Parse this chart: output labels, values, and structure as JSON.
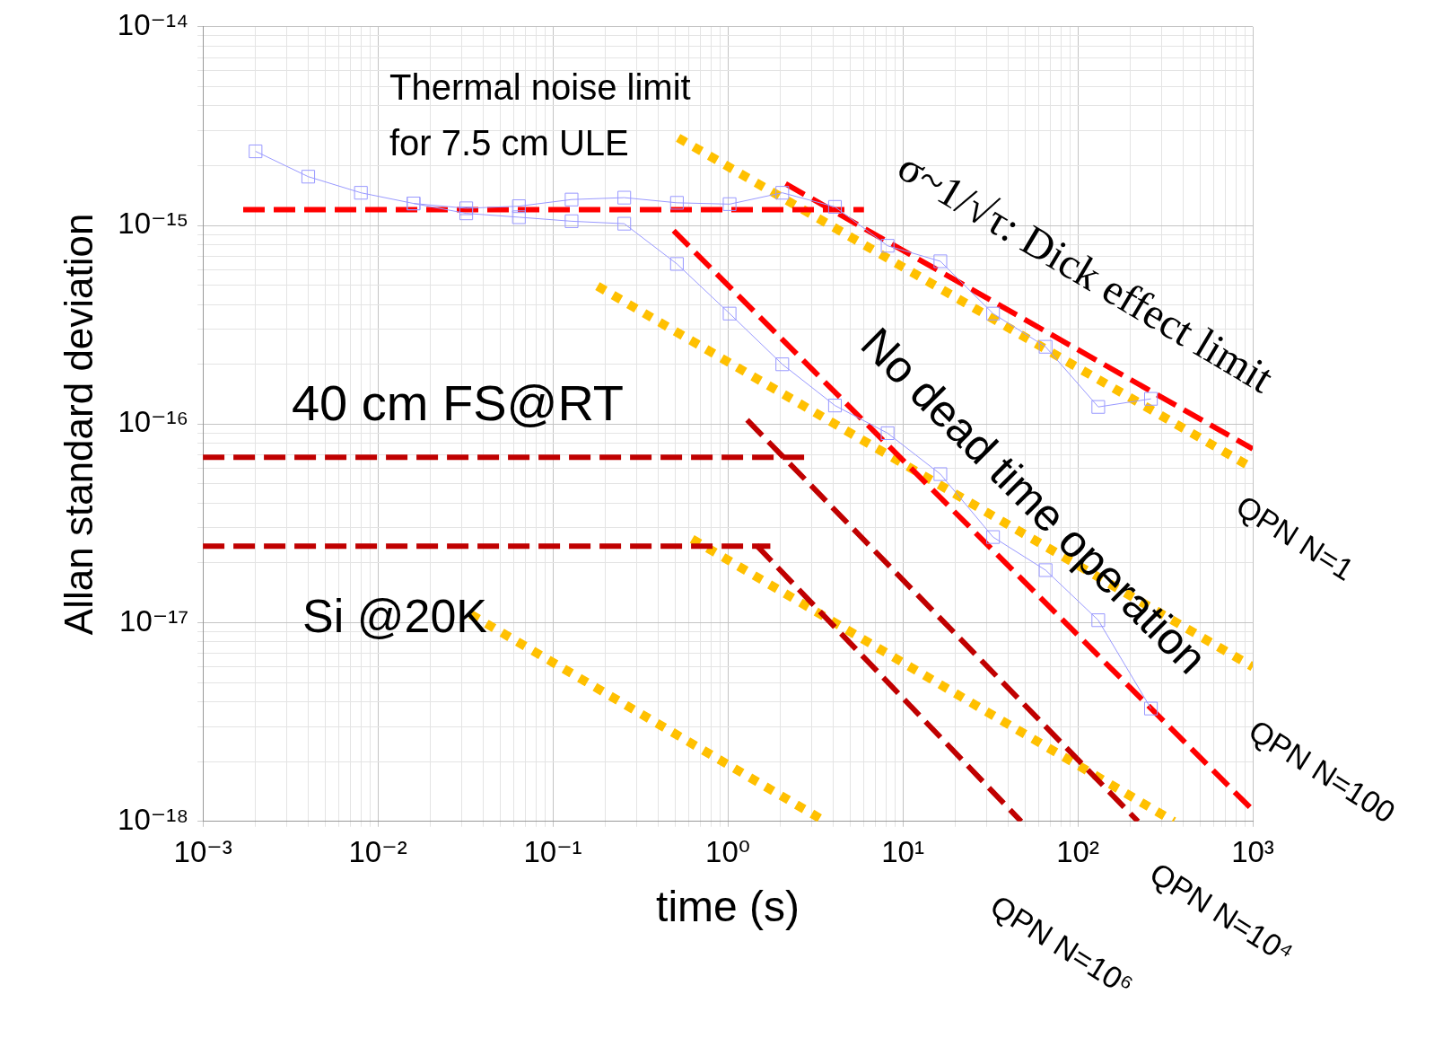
{
  "chart_data": {
    "type": "line",
    "xlabel": "time (s)",
    "ylabel": "Allan standard deviation",
    "log": "xy",
    "grid": true,
    "legend": false,
    "xlim": [
      0.001,
      1000
    ],
    "ylim": [
      1e-18,
      1e-14
    ],
    "xticks": [
      {
        "value": 0.001,
        "label": "10⁻³"
      },
      {
        "value": 0.002,
        "label": null
      },
      {
        "value": 0.003,
        "label": null
      },
      {
        "value": 0.004,
        "label": null
      },
      {
        "value": 0.005,
        "label": null
      },
      {
        "value": 0.006,
        "label": null
      },
      {
        "value": 0.007,
        "label": null
      },
      {
        "value": 0.008,
        "label": null
      },
      {
        "value": 0.009,
        "label": null
      },
      {
        "value": 0.01,
        "label": "10⁻²"
      },
      {
        "value": 0.02,
        "label": null
      },
      {
        "value": 0.03,
        "label": null
      },
      {
        "value": 0.04,
        "label": null
      },
      {
        "value": 0.05,
        "label": null
      },
      {
        "value": 0.06,
        "label": null
      },
      {
        "value": 0.07,
        "label": null
      },
      {
        "value": 0.08,
        "label": null
      },
      {
        "value": 0.09,
        "label": null
      },
      {
        "value": 0.1,
        "label": "10⁻¹"
      },
      {
        "value": 0.2,
        "label": null
      },
      {
        "value": 0.3,
        "label": null
      },
      {
        "value": 0.4,
        "label": null
      },
      {
        "value": 0.5,
        "label": null
      },
      {
        "value": 0.6,
        "label": null
      },
      {
        "value": 0.7,
        "label": null
      },
      {
        "value": 0.8,
        "label": null
      },
      {
        "value": 0.9,
        "label": null
      },
      {
        "value": 1,
        "label": "10⁰"
      },
      {
        "value": 2,
        "label": null
      },
      {
        "value": 3,
        "label": null
      },
      {
        "value": 4,
        "label": null
      },
      {
        "value": 5,
        "label": null
      },
      {
        "value": 6,
        "label": null
      },
      {
        "value": 7,
        "label": null
      },
      {
        "value": 8,
        "label": null
      },
      {
        "value": 9,
        "label": null
      },
      {
        "value": 10,
        "label": "10¹"
      },
      {
        "value": 20,
        "label": null
      },
      {
        "value": 30,
        "label": null
      },
      {
        "value": 40,
        "label": null
      },
      {
        "value": 50,
        "label": null
      },
      {
        "value": 60,
        "label": null
      },
      {
        "value": 70,
        "label": null
      },
      {
        "value": 80,
        "label": null
      },
      {
        "value": 90,
        "label": null
      },
      {
        "value": 100,
        "label": "10²"
      },
      {
        "value": 200,
        "label": null
      },
      {
        "value": 300,
        "label": null
      },
      {
        "value": 400,
        "label": null
      },
      {
        "value": 500,
        "label": null
      },
      {
        "value": 600,
        "label": null
      },
      {
        "value": 700,
        "label": null
      },
      {
        "value": 800,
        "label": null
      },
      {
        "value": 900,
        "label": null
      },
      {
        "value": 1000,
        "label": "10³"
      }
    ],
    "yticks": [
      {
        "value": 1e-18,
        "label": "10⁻¹⁸"
      },
      {
        "value": 2e-18,
        "label": null
      },
      {
        "value": 3e-18,
        "label": null
      },
      {
        "value": 4e-18,
        "label": null
      },
      {
        "value": 5e-18,
        "label": null
      },
      {
        "value": 6e-18,
        "label": null
      },
      {
        "value": 7e-18,
        "label": null
      },
      {
        "value": 8e-18,
        "label": null
      },
      {
        "value": 9e-18,
        "label": null
      },
      {
        "value": 1e-17,
        "label": "10⁻¹⁷"
      },
      {
        "value": 2e-17,
        "label": null
      },
      {
        "value": 3e-17,
        "label": null
      },
      {
        "value": 4e-17,
        "label": null
      },
      {
        "value": 5e-17,
        "label": null
      },
      {
        "value": 6e-17,
        "label": null
      },
      {
        "value": 7e-17,
        "label": null
      },
      {
        "value": 8e-17,
        "label": null
      },
      {
        "value": 9e-17,
        "label": null
      },
      {
        "value": 1e-16,
        "label": "10⁻¹⁶"
      },
      {
        "value": 2e-16,
        "label": null
      },
      {
        "value": 3e-16,
        "label": null
      },
      {
        "value": 4e-16,
        "label": null
      },
      {
        "value": 5e-16,
        "label": null
      },
      {
        "value": 6e-16,
        "label": null
      },
      {
        "value": 7e-16,
        "label": null
      },
      {
        "value": 8e-16,
        "label": null
      },
      {
        "value": 9e-16,
        "label": null
      },
      {
        "value": 1e-15,
        "label": "10⁻¹⁵"
      },
      {
        "value": 2e-15,
        "label": null
      },
      {
        "value": 3e-15,
        "label": null
      },
      {
        "value": 4e-15,
        "label": null
      },
      {
        "value": 5e-15,
        "label": null
      },
      {
        "value": 6e-15,
        "label": null
      },
      {
        "value": 7e-15,
        "label": null
      },
      {
        "value": 8e-15,
        "label": null
      },
      {
        "value": 9e-15,
        "label": null
      },
      {
        "value": 1e-14,
        "label": "10⁻¹⁴"
      }
    ],
    "series": [
      {
        "color": "#9999ff",
        "marker": "square",
        "line_style": "solid",
        "x": [
          0.002,
          0.004,
          0.008,
          0.016,
          0.032,
          0.064,
          0.128,
          0.256,
          0.512,
          1.024,
          2.048,
          4.096,
          8.19,
          16.4,
          32.8,
          65.5,
          131,
          262
        ],
        "values": [
          2.36e-15,
          1.76e-15,
          1.46e-15,
          1.29e-15,
          1.22e-15,
          1.25e-15,
          1.35e-15,
          1.38e-15,
          1.3e-15,
          1.28e-15,
          1.46e-15,
          1.24e-15,
          7.9e-16,
          6.6e-16,
          3.6e-16,
          2.45e-16,
          1.22e-16,
          1.34e-16
        ]
      },
      {
        "color": "#9999ff",
        "marker": "square",
        "line_style": "solid",
        "x": [
          0.016,
          0.032,
          0.064,
          0.128,
          0.256,
          0.512,
          1.024,
          2.048,
          4.096,
          8.19,
          16.4,
          32.8,
          65.5,
          131,
          262
        ],
        "values": [
          1.29e-15,
          1.15e-15,
          1.1e-15,
          1.05e-15,
          1.02e-15,
          6.4e-16,
          3.6e-16,
          2e-16,
          1.24e-16,
          9e-17,
          5.6e-17,
          2.7e-17,
          1.84e-17,
          1.03e-17,
          3.7e-18
        ]
      },
      {
        "color": "#ff0000",
        "marker": "none",
        "line_style": "dashed",
        "x": [
          0.0017,
          6
        ],
        "values": [
          1.2e-15,
          1.2e-15
        ]
      },
      {
        "color": "#ff0000",
        "marker": "none",
        "line_style": "dashed",
        "x": [
          2.14,
          1000
        ],
        "values": [
          1.62e-15,
          7.5e-17
        ]
      },
      {
        "color": "#ff0000",
        "marker": "none",
        "line_style": "dashed",
        "x": [
          0.49,
          1000
        ],
        "values": [
          9.4e-16,
          1.14e-18
        ]
      },
      {
        "color": "#c00000",
        "marker": "none",
        "line_style": "dashed",
        "x": [
          0.001,
          2.94
        ],
        "values": [
          6.8e-17,
          6.8e-17
        ]
      },
      {
        "color": "#c00000",
        "marker": "none",
        "line_style": "dashed",
        "x": [
          1.29,
          221
        ],
        "values": [
          1.05e-16,
          1e-18
        ]
      },
      {
        "color": "#c00000",
        "marker": "none",
        "line_style": "dashed",
        "x": [
          0.001,
          1.75
        ],
        "values": [
          2.43e-17,
          2.43e-17
        ]
      },
      {
        "color": "#c00000",
        "marker": "none",
        "line_style": "dashed",
        "x": [
          1.46,
          47.5
        ],
        "values": [
          2.45e-17,
          1e-18
        ]
      },
      {
        "color": "#ffc000",
        "marker": "none",
        "line_style": "dotted",
        "x": [
          0.52,
          1000
        ],
        "values": [
          2.76e-15,
          6e-17
        ]
      },
      {
        "color": "#ffc000",
        "marker": "none",
        "line_style": "dotted",
        "x": [
          0.18,
          1000
        ],
        "values": [
          4.95e-16,
          6e-18
        ]
      },
      {
        "color": "#ffc000",
        "marker": "none",
        "line_style": "dotted",
        "x": [
          0.625,
          354
        ],
        "values": [
          2.64e-17,
          1e-18
        ]
      },
      {
        "color": "#ffc000",
        "marker": "none",
        "line_style": "dotted",
        "x": [
          0.034,
          3.6
        ],
        "values": [
          1.1e-17,
          1e-18
        ]
      }
    ],
    "annotations": [
      "Thermal noise limit\nfor 7.5 cm ULE",
      "σ~1/√τ: Dick effect limit",
      "No dead time operation",
      "40 cm FS@RT",
      "Si @20K",
      "QPN N=1",
      "QPN N=100",
      "QPN N=10⁴",
      "QPN N=10⁶"
    ]
  }
}
